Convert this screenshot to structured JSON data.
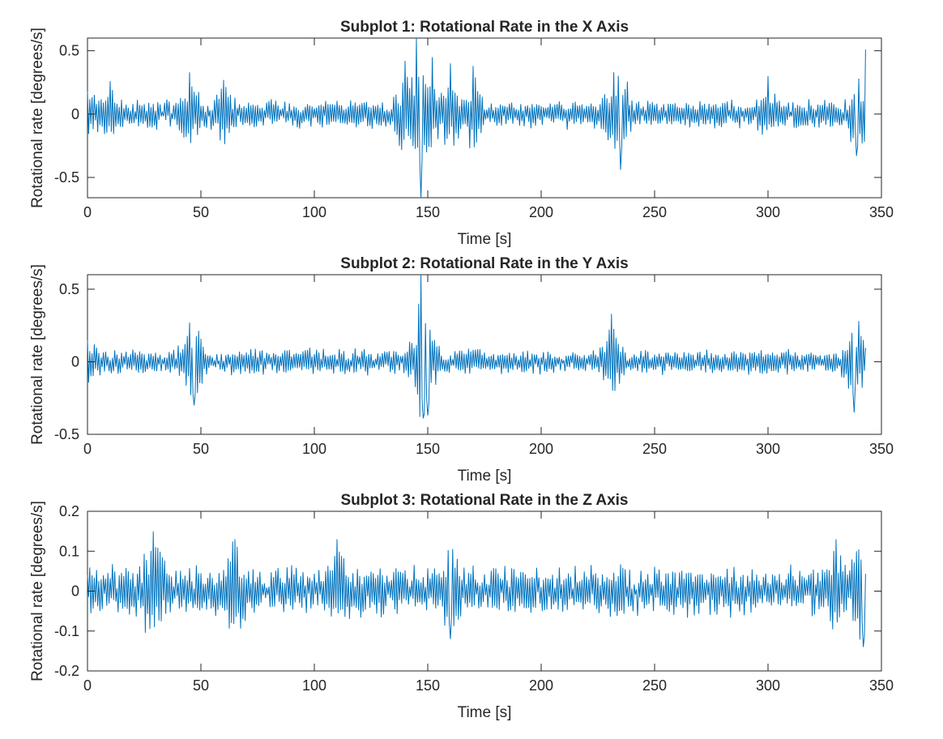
{
  "chart_data": [
    {
      "type": "line",
      "title": "Subplot 1: Rotational Rate in the X Axis",
      "xlabel": "Time [s]",
      "ylabel": "Rotational rate [degrees/s]",
      "xlim": [
        0,
        350
      ],
      "ylim": [
        -0.66,
        0.6
      ],
      "x_ticks": [
        0,
        50,
        100,
        150,
        200,
        250,
        300,
        350
      ],
      "x_tick_labels": [
        "0",
        "50",
        "100",
        "150",
        "200",
        "250",
        "300",
        "350"
      ],
      "y_ticks": [
        -0.5,
        0,
        0.5
      ],
      "y_tick_labels": [
        "-0.5",
        "0",
        "0.5"
      ],
      "grid": false,
      "series": [
        {
          "color": "#0072BD",
          "x_range": [
            0,
            343
          ],
          "sample_interval": 0.5,
          "noise_amplitude": 0.09,
          "max_value": 0.6,
          "min_value": -0.66,
          "envelope_peaks": [
            [
              0,
              0.18
            ],
            [
              10,
              0.26
            ],
            [
              45,
              0.33
            ],
            [
              60,
              0.27
            ],
            [
              140,
              0.42
            ],
            [
              145,
              0.6
            ],
            [
              147,
              -0.66
            ],
            [
              152,
              0.45
            ],
            [
              160,
              0.4
            ],
            [
              170,
              0.38
            ],
            [
              232,
              0.33
            ],
            [
              235,
              -0.44
            ],
            [
              300,
              0.3
            ],
            [
              340,
              0.28
            ],
            [
              343,
              0.51
            ],
            [
              339,
              -0.33
            ]
          ]
        }
      ]
    },
    {
      "type": "line",
      "title": "Subplot 2: Rotational Rate in the Y Axis",
      "xlabel": "Time [s]",
      "ylabel": "Rotational rate [degrees/s]",
      "xlim": [
        0,
        350
      ],
      "ylim": [
        -0.5,
        0.6
      ],
      "x_ticks": [
        0,
        50,
        100,
        150,
        200,
        250,
        300,
        350
      ],
      "x_tick_labels": [
        "0",
        "50",
        "100",
        "150",
        "200",
        "250",
        "300",
        "350"
      ],
      "y_ticks": [
        -0.5,
        0,
        0.5
      ],
      "y_tick_labels": [
        "-0.5",
        "0",
        "0.5"
      ],
      "grid": false,
      "series": [
        {
          "color": "#0072BD",
          "x_range": [
            0,
            343
          ],
          "sample_interval": 0.5,
          "noise_amplitude": 0.07,
          "max_value": 0.6,
          "min_value": -0.39,
          "envelope_peaks": [
            [
              0,
              0.15
            ],
            [
              45,
              0.27
            ],
            [
              47,
              -0.3
            ],
            [
              146,
              0.4
            ],
            [
              147,
              0.6
            ],
            [
              148,
              -0.39
            ],
            [
              150,
              -0.37
            ],
            [
              231,
              0.33
            ],
            [
              340,
              0.28
            ],
            [
              338,
              -0.35
            ]
          ]
        }
      ]
    },
    {
      "type": "line",
      "title": "Subplot 3: Rotational Rate in the Z Axis",
      "xlabel": "Time [s]",
      "ylabel": "Rotational rate [degrees/s]",
      "xlim": [
        0,
        350
      ],
      "ylim": [
        -0.2,
        0.2
      ],
      "x_ticks": [
        0,
        50,
        100,
        150,
        200,
        250,
        300,
        350
      ],
      "x_tick_labels": [
        "0",
        "50",
        "100",
        "150",
        "200",
        "250",
        "300",
        "350"
      ],
      "y_ticks": [
        -0.2,
        -0.1,
        0,
        0.1,
        0.2
      ],
      "y_tick_labels": [
        "-0.2",
        "-0.1",
        "0",
        "0.1",
        "0.2"
      ],
      "grid": false,
      "series": [
        {
          "color": "#0072BD",
          "x_range": [
            0,
            343
          ],
          "sample_interval": 0.5,
          "noise_amplitude": 0.05,
          "max_value": 0.15,
          "min_value": -0.14,
          "envelope_peaks": [
            [
              29,
              0.15
            ],
            [
              65,
              0.13
            ],
            [
              110,
              0.13
            ],
            [
              160,
              -0.12
            ],
            [
              330,
              0.13
            ],
            [
              342,
              -0.14
            ]
          ]
        }
      ]
    }
  ]
}
